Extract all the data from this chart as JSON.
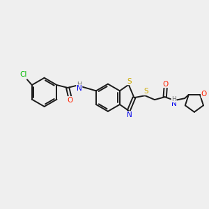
{
  "background_color": "#efefef",
  "bond_color": "#1a1a1a",
  "figsize": [
    3.0,
    3.0
  ],
  "dpi": 100,
  "atom_colors": {
    "Cl": "#00bb00",
    "O": "#ff2000",
    "N": "#0000ee",
    "S": "#ccaa00",
    "H": "#666666",
    "C": "#1a1a1a"
  },
  "font_size": 7.0,
  "lw": 1.4
}
